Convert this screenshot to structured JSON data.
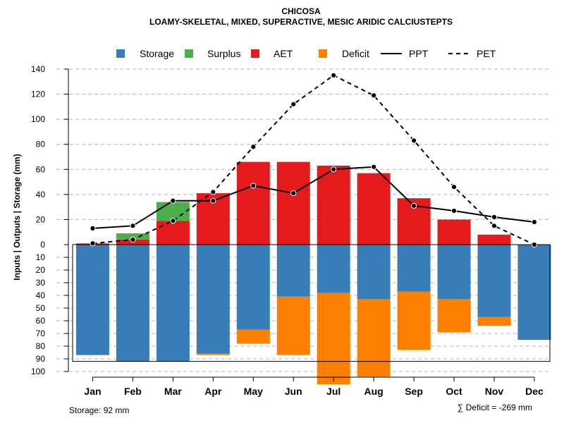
{
  "chart_data": {
    "type": "bar",
    "title": "CHICOSA",
    "subtitle": "LOAMY-SKELETAL, MIXED, SUPERACTIVE, MESIC ARIDIC CALCIUSTEPTS",
    "ylabel": "Inputs | Outputs | Storage    (mm)",
    "categories": [
      "Jan",
      "Feb",
      "Mar",
      "Apr",
      "May",
      "Jun",
      "Jul",
      "Aug",
      "Sep",
      "Oct",
      "Nov",
      "Dec"
    ],
    "upper_ticks": [
      "0",
      "20",
      "40",
      "60",
      "80",
      "100",
      "120",
      "140"
    ],
    "lower_ticks": [
      "10",
      "20",
      "30",
      "40",
      "50",
      "60",
      "70",
      "80",
      "90",
      "100"
    ],
    "upper_ylim": [
      0,
      140
    ],
    "lower_ylim": [
      0,
      100
    ],
    "storage_capacity": 92,
    "series": [
      {
        "name": "Storage",
        "color": "#377EB8",
        "values": [
          87,
          92,
          92,
          86,
          67,
          41,
          38,
          43,
          37,
          43,
          57,
          75
        ]
      },
      {
        "name": "Surplus",
        "color": "#4DAF4A",
        "values": [
          0,
          5,
          15,
          0,
          0,
          0,
          0,
          0,
          0,
          0,
          0,
          0
        ]
      },
      {
        "name": "AET",
        "color": "#E41A1C",
        "values": [
          1,
          4,
          19,
          41,
          66,
          66,
          63,
          57,
          37,
          20,
          8,
          0
        ]
      },
      {
        "name": "Deficit",
        "color": "#FF7F00",
        "values": [
          0,
          0,
          0,
          1,
          11,
          46,
          72,
          61,
          46,
          26,
          7,
          0
        ]
      },
      {
        "name": "PPT",
        "color": "#000000",
        "style": "solid",
        "values": [
          13,
          15,
          35,
          35,
          47,
          41,
          60,
          62,
          31,
          27,
          22,
          18
        ]
      },
      {
        "name": "PET",
        "color": "#000000",
        "style": "dashed",
        "values": [
          1,
          4,
          19,
          42,
          78,
          112,
          135,
          119,
          83,
          46,
          15,
          0
        ]
      }
    ],
    "footer_left": "Storage: 92 mm",
    "footer_right": "∑ Deficit = -269 mm"
  }
}
